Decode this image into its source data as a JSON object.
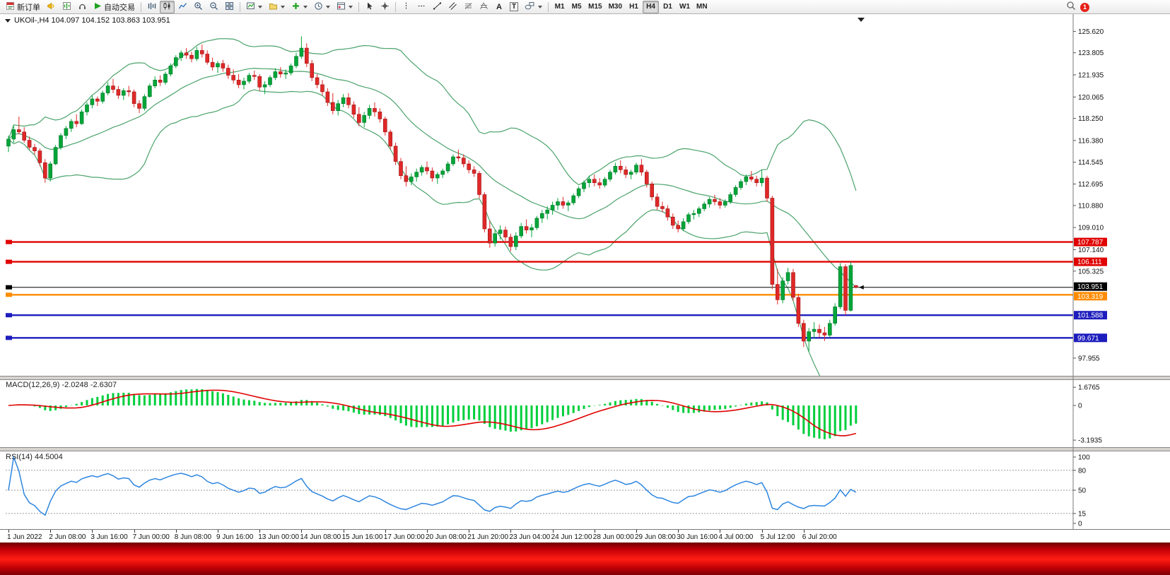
{
  "toolbar": {
    "new_order_label": "新订单",
    "autotrade_label": "自动交易",
    "text_tool_label": "A",
    "label_tool_label": "T",
    "timeframes": [
      "M1",
      "M5",
      "M15",
      "M30",
      "H1",
      "H4",
      "D1",
      "W1",
      "MN"
    ],
    "active_timeframe": "H4",
    "badge": "1"
  },
  "chart_header": {
    "text": "UKOil-,H4  104.097 104.152 103.863 103.951"
  },
  "panels": {
    "macd": {
      "text": "MACD(12,26,9) -2.0248 -2.6307"
    },
    "rsi": {
      "text": "RSI(14) 44.5004"
    }
  },
  "chart_data": {
    "type": "candlestick",
    "symbol": "UKOil-",
    "timeframe": "H4",
    "title": "UKOil-,H4",
    "ohlc_header": [
      104.097,
      104.152,
      103.863,
      103.951
    ],
    "ylim": [
      96.58,
      126.0
    ],
    "bull_color": "#00a638",
    "bear_color": "#e02828",
    "price_ticks": [
      "125.620",
      "123.805",
      "121.935",
      "120.065",
      "118.250",
      "116.380",
      "114.545",
      "112.695",
      "110.880",
      "109.010",
      "107.140",
      "105.325",
      "97.955"
    ],
    "hlines": [
      {
        "value": 107.787,
        "label": "107.787",
        "color": "#e00000",
        "type": "resistance",
        "dy": 0
      },
      {
        "value": 106.111,
        "label": "106.111",
        "color": "#e00000",
        "type": "resistance",
        "dy": 0
      },
      {
        "value": 103.951,
        "label": "103.951",
        "color": "#000000",
        "type": "current-price",
        "dy": -1
      },
      {
        "value": 103.319,
        "label": "103.319",
        "color": "#ff8c00",
        "type": "level",
        "dy": 2
      },
      {
        "value": 101.588,
        "label": "101.588",
        "color": "#1d1dbe",
        "type": "support",
        "dy": 0
      },
      {
        "value": 99.671,
        "label": "99.671",
        "color": "#1d1dbe",
        "type": "support",
        "dy": 0
      }
    ],
    "x_labels": [
      {
        "i": 0,
        "t": "1 Jun 2022"
      },
      {
        "i": 8,
        "t": "2 Jun 08:00"
      },
      {
        "i": 16,
        "t": "3 Jun 16:00"
      },
      {
        "i": 24,
        "t": "7 Jun 00:00"
      },
      {
        "i": 32,
        "t": "8 Jun 08:00"
      },
      {
        "i": 40,
        "t": "9 Jun 16:00"
      },
      {
        "i": 48,
        "t": "13 Jun 00:00"
      },
      {
        "i": 56,
        "t": "14 Jun 08:00"
      },
      {
        "i": 64,
        "t": "15 Jun 16:00"
      },
      {
        "i": 72,
        "t": "17 Jun 00:00"
      },
      {
        "i": 80,
        "t": "20 Jun 08:00"
      },
      {
        "i": 88,
        "t": "21 Jun 20:00"
      },
      {
        "i": 96,
        "t": "23 Jun 04:00"
      },
      {
        "i": 104,
        "t": "24 Jun 12:00"
      },
      {
        "i": 112,
        "t": "28 Jun 00:00"
      },
      {
        "i": 120,
        "t": "29 Jun 08:00"
      },
      {
        "i": 128,
        "t": "30 Jun 16:00"
      },
      {
        "i": 136,
        "t": "4 Jul 00:00"
      },
      {
        "i": 144,
        "t": "5 Jul 12:00"
      },
      {
        "i": 152,
        "t": "6 Jul 20:00"
      }
    ],
    "indicators": {
      "bollinger": {
        "period": 20,
        "deviation": 2,
        "color": "#4ba36b"
      },
      "macd": {
        "fast": 12,
        "slow": 26,
        "signal": 9,
        "hist_color": "#00cf3c",
        "signal_color": "#e00000",
        "axis": [
          "1.6765",
          "0",
          "-3.1935"
        ],
        "axis_values": [
          1.6765,
          0,
          -3.1935
        ],
        "ylim": [
          -3.45,
          1.95
        ]
      },
      "rsi": {
        "period": 14,
        "color": "#2e86e0",
        "levels": [
          80,
          50,
          15
        ],
        "axis": [
          "100",
          "80",
          "50",
          "15",
          "0"
        ],
        "axis_values": [
          100,
          80,
          50,
          15,
          0
        ],
        "ylim": [
          0,
          100
        ]
      }
    },
    "candles": [
      [
        115.9,
        116.8,
        115.4,
        116.5
      ],
      [
        116.5,
        117.6,
        116.2,
        117.3
      ],
      [
        117.3,
        118.4,
        116.9,
        117.1
      ],
      [
        117.1,
        117.5,
        116.2,
        116.4
      ],
      [
        116.4,
        116.7,
        115.6,
        115.8
      ],
      [
        115.8,
        116.1,
        115.2,
        115.5
      ],
      [
        115.5,
        115.7,
        114.2,
        114.5
      ],
      [
        114.5,
        114.8,
        112.8,
        113.2
      ],
      [
        113.2,
        114.6,
        112.9,
        114.4
      ],
      [
        114.4,
        116.0,
        114.3,
        115.8
      ],
      [
        115.8,
        117.0,
        115.6,
        116.8
      ],
      [
        116.8,
        117.6,
        116.5,
        117.4
      ],
      [
        117.4,
        118.2,
        117.1,
        118.0
      ],
      [
        118.0,
        118.6,
        117.5,
        117.8
      ],
      [
        117.8,
        119.0,
        117.7,
        118.8
      ],
      [
        118.8,
        119.6,
        118.5,
        119.4
      ],
      [
        119.4,
        120.2,
        119.1,
        119.9
      ],
      [
        119.9,
        120.1,
        119.3,
        119.7
      ],
      [
        119.7,
        120.6,
        119.5,
        120.4
      ],
      [
        120.4,
        121.3,
        120.2,
        121.0
      ],
      [
        121.0,
        121.6,
        120.4,
        120.7
      ],
      [
        120.7,
        121.0,
        119.9,
        120.2
      ],
      [
        120.2,
        120.8,
        119.8,
        120.6
      ],
      [
        120.6,
        121.0,
        120.1,
        120.5
      ],
      [
        120.5,
        120.7,
        119.2,
        119.5
      ],
      [
        119.5,
        119.8,
        118.7,
        119.1
      ],
      [
        119.1,
        120.3,
        118.9,
        120.1
      ],
      [
        120.1,
        121.2,
        120.0,
        121.0
      ],
      [
        121.0,
        121.8,
        120.8,
        121.5
      ],
      [
        121.5,
        121.9,
        121.0,
        121.3
      ],
      [
        121.3,
        122.2,
        121.1,
        122.0
      ],
      [
        122.0,
        122.9,
        121.8,
        122.7
      ],
      [
        122.7,
        123.6,
        122.5,
        123.4
      ],
      [
        123.4,
        124.0,
        123.1,
        123.8
      ],
      [
        123.8,
        124.2,
        123.3,
        123.6
      ],
      [
        123.6,
        123.9,
        123.0,
        123.3
      ],
      [
        123.3,
        124.3,
        123.1,
        124.0
      ],
      [
        124.0,
        124.5,
        123.4,
        123.7
      ],
      [
        123.7,
        124.0,
        122.8,
        123.0
      ],
      [
        123.0,
        123.4,
        122.3,
        122.6
      ],
      [
        122.6,
        123.1,
        122.1,
        122.9
      ],
      [
        122.9,
        123.2,
        122.2,
        122.5
      ],
      [
        122.5,
        122.8,
        121.6,
        121.9
      ],
      [
        121.9,
        122.4,
        121.2,
        121.5
      ],
      [
        121.5,
        122.0,
        120.8,
        121.1
      ],
      [
        121.1,
        121.7,
        120.7,
        121.4
      ],
      [
        121.4,
        122.1,
        121.2,
        121.9
      ],
      [
        121.9,
        122.3,
        121.5,
        121.8
      ],
      [
        121.8,
        122.0,
        120.6,
        120.9
      ],
      [
        120.9,
        121.4,
        120.3,
        121.1
      ],
      [
        121.1,
        121.9,
        120.9,
        121.7
      ],
      [
        121.7,
        122.5,
        121.5,
        122.2
      ],
      [
        122.2,
        122.6,
        121.7,
        122.0
      ],
      [
        122.0,
        122.4,
        121.6,
        122.1
      ],
      [
        122.1,
        122.9,
        121.9,
        122.7
      ],
      [
        122.7,
        123.8,
        122.5,
        123.5
      ],
      [
        123.5,
        125.2,
        123.3,
        124.2
      ],
      [
        124.2,
        124.6,
        122.6,
        122.9
      ],
      [
        122.9,
        123.2,
        121.4,
        121.7
      ],
      [
        121.7,
        122.0,
        120.8,
        121.1
      ],
      [
        121.1,
        121.5,
        120.2,
        120.5
      ],
      [
        120.5,
        120.8,
        119.3,
        119.6
      ],
      [
        119.6,
        120.4,
        118.6,
        118.9
      ],
      [
        118.9,
        119.8,
        118.5,
        119.5
      ],
      [
        119.5,
        120.3,
        119.2,
        120.0
      ],
      [
        120.0,
        120.4,
        119.1,
        119.4
      ],
      [
        119.4,
        119.7,
        118.3,
        118.6
      ],
      [
        118.6,
        119.2,
        117.6,
        117.9
      ],
      [
        117.9,
        118.8,
        117.5,
        118.5
      ],
      [
        118.5,
        119.4,
        118.2,
        119.1
      ],
      [
        119.1,
        119.6,
        118.4,
        118.8
      ],
      [
        118.8,
        119.1,
        117.9,
        118.2
      ],
      [
        118.2,
        118.4,
        116.8,
        117.1
      ],
      [
        117.1,
        117.3,
        115.6,
        115.9
      ],
      [
        115.9,
        116.2,
        114.3,
        114.6
      ],
      [
        114.6,
        114.9,
        113.1,
        113.4
      ],
      [
        113.4,
        114.2,
        112.5,
        112.9
      ],
      [
        112.9,
        113.6,
        112.6,
        113.3
      ],
      [
        113.3,
        114.0,
        112.9,
        113.7
      ],
      [
        113.7,
        114.3,
        113.4,
        114.1
      ],
      [
        114.1,
        114.6,
        113.5,
        113.8
      ],
      [
        113.8,
        114.1,
        112.9,
        113.2
      ],
      [
        113.2,
        113.7,
        112.7,
        113.5
      ],
      [
        113.5,
        114.0,
        113.2,
        113.8
      ],
      [
        113.8,
        114.6,
        113.6,
        114.4
      ],
      [
        114.4,
        115.2,
        114.2,
        115.0
      ],
      [
        115.0,
        115.6,
        114.6,
        114.9
      ],
      [
        114.9,
        115.2,
        114.1,
        114.4
      ],
      [
        114.4,
        114.7,
        113.6,
        113.9
      ],
      [
        113.9,
        114.2,
        113.3,
        113.6
      ],
      [
        113.6,
        113.8,
        111.5,
        111.8
      ],
      [
        111.8,
        112.0,
        108.6,
        108.9
      ],
      [
        108.9,
        109.6,
        107.3,
        107.7
      ],
      [
        107.7,
        108.8,
        107.4,
        108.5
      ],
      [
        108.5,
        109.2,
        108.0,
        108.8
      ],
      [
        108.8,
        109.1,
        107.9,
        108.2
      ],
      [
        108.2,
        108.5,
        107.0,
        107.4
      ],
      [
        107.4,
        108.6,
        107.1,
        108.3
      ],
      [
        108.3,
        109.4,
        108.1,
        109.1
      ],
      [
        109.1,
        109.7,
        108.5,
        108.8
      ],
      [
        108.8,
        109.3,
        108.2,
        109.0
      ],
      [
        109.0,
        110.0,
        108.8,
        109.8
      ],
      [
        109.8,
        110.5,
        109.4,
        110.2
      ],
      [
        110.2,
        110.8,
        109.7,
        110.5
      ],
      [
        110.5,
        111.2,
        110.1,
        110.9
      ],
      [
        110.9,
        111.5,
        110.5,
        111.2
      ],
      [
        111.2,
        111.6,
        110.6,
        110.9
      ],
      [
        110.9,
        111.3,
        110.4,
        111.1
      ],
      [
        111.1,
        111.9,
        110.9,
        111.7
      ],
      [
        111.7,
        112.5,
        111.5,
        112.3
      ],
      [
        112.3,
        113.0,
        112.0,
        112.8
      ],
      [
        112.8,
        113.4,
        112.4,
        113.1
      ],
      [
        113.1,
        113.5,
        112.5,
        112.8
      ],
      [
        112.8,
        113.2,
        112.3,
        112.6
      ],
      [
        112.6,
        113.3,
        112.4,
        113.1
      ],
      [
        113.1,
        113.9,
        112.9,
        113.7
      ],
      [
        113.7,
        114.5,
        113.5,
        114.2
      ],
      [
        114.2,
        114.7,
        113.6,
        113.9
      ],
      [
        113.9,
        114.2,
        113.2,
        113.5
      ],
      [
        113.5,
        113.9,
        113.1,
        113.7
      ],
      [
        113.7,
        114.5,
        113.5,
        114.3
      ],
      [
        114.3,
        114.8,
        113.4,
        113.7
      ],
      [
        113.7,
        113.9,
        112.4,
        112.7
      ],
      [
        112.7,
        112.9,
        111.3,
        111.6
      ],
      [
        111.6,
        111.9,
        110.5,
        110.8
      ],
      [
        110.8,
        111.2,
        110.3,
        110.6
      ],
      [
        110.6,
        110.9,
        109.6,
        109.9
      ],
      [
        109.9,
        110.2,
        108.9,
        109.2
      ],
      [
        109.2,
        109.6,
        108.6,
        108.9
      ],
      [
        108.9,
        109.8,
        108.7,
        109.5
      ],
      [
        109.5,
        110.3,
        109.3,
        110.1
      ],
      [
        110.1,
        110.5,
        109.7,
        110.2
      ],
      [
        110.2,
        110.8,
        109.9,
        110.6
      ],
      [
        110.6,
        111.2,
        110.4,
        111.0
      ],
      [
        111.0,
        111.6,
        110.7,
        111.4
      ],
      [
        111.4,
        111.8,
        110.9,
        111.2
      ],
      [
        111.2,
        111.5,
        110.6,
        110.9
      ],
      [
        110.9,
        111.4,
        110.7,
        111.2
      ],
      [
        111.2,
        112.0,
        111.0,
        111.8
      ],
      [
        111.8,
        112.6,
        111.6,
        112.4
      ],
      [
        112.4,
        113.1,
        112.2,
        112.9
      ],
      [
        112.9,
        113.5,
        112.6,
        113.3
      ],
      [
        113.3,
        113.8,
        112.9,
        113.1
      ],
      [
        113.1,
        113.4,
        112.5,
        112.8
      ],
      [
        112.8,
        113.9,
        112.5,
        113.2
      ],
      [
        113.2,
        113.4,
        111.2,
        111.5
      ],
      [
        111.5,
        111.7,
        103.8,
        104.2
      ],
      [
        104.2,
        105.5,
        102.5,
        102.9
      ],
      [
        102.9,
        104.8,
        102.6,
        104.5
      ],
      [
        104.5,
        105.6,
        104.2,
        105.2
      ],
      [
        105.2,
        105.5,
        102.8,
        103.1
      ],
      [
        103.1,
        103.4,
        100.6,
        100.9
      ],
      [
        100.9,
        101.2,
        98.9,
        99.4
      ],
      [
        99.4,
        100.5,
        98.5,
        100.2
      ],
      [
        100.2,
        101.0,
        99.6,
        100.4
      ],
      [
        100.4,
        100.8,
        99.7,
        100.1
      ],
      [
        100.1,
        100.6,
        99.4,
        99.9
      ],
      [
        99.9,
        101.2,
        99.7,
        100.9
      ],
      [
        100.9,
        102.6,
        100.7,
        102.3
      ],
      [
        102.3,
        106.0,
        102.1,
        105.7
      ],
      [
        105.7,
        105.9,
        101.6,
        102.0
      ],
      [
        102.0,
        106.1,
        101.9,
        105.8
      ],
      [
        104.097,
        104.152,
        103.863,
        103.951
      ]
    ]
  }
}
